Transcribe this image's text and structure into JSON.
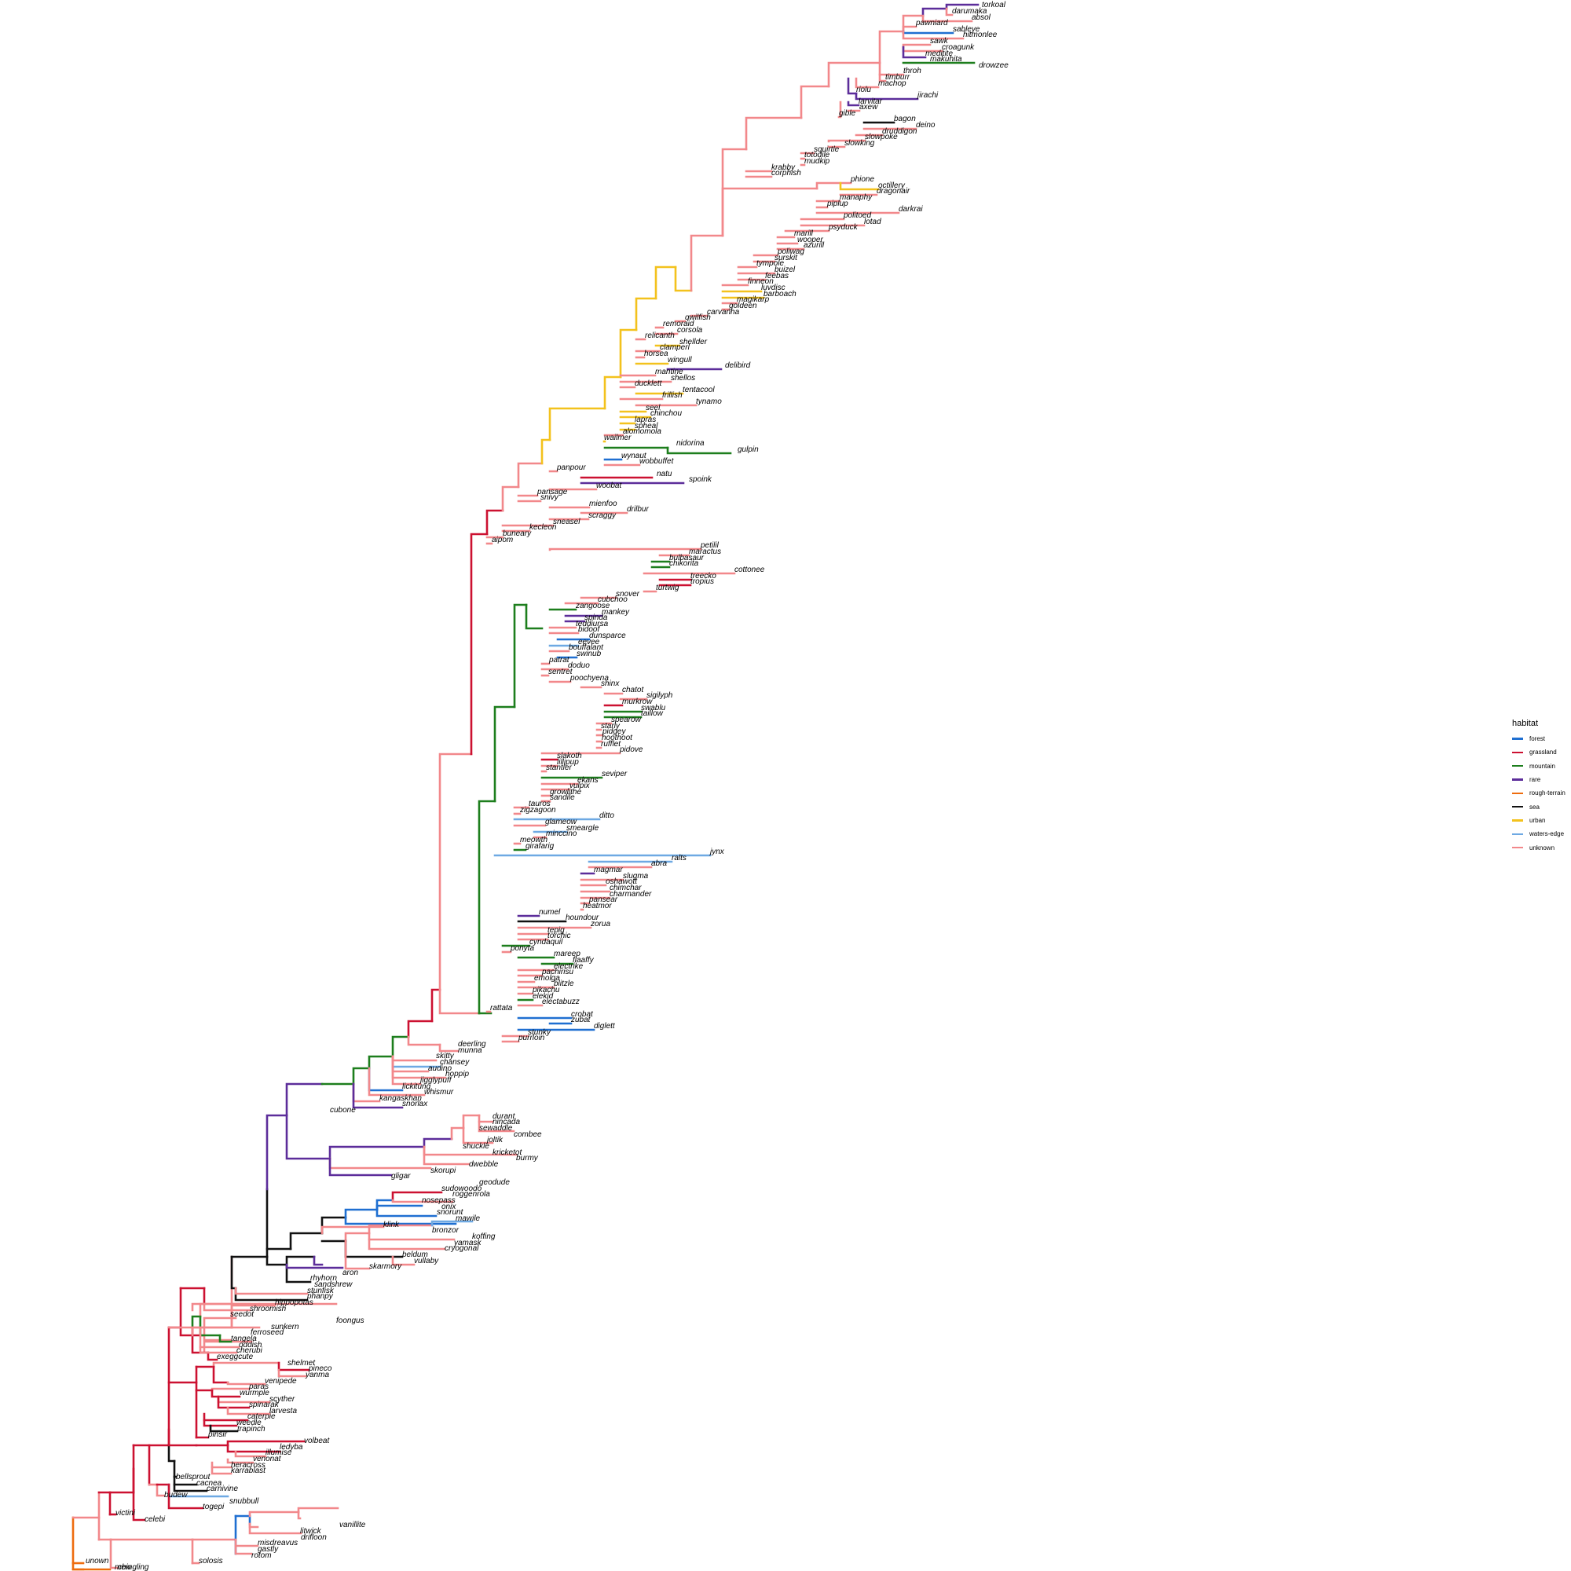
{
  "legend": {
    "title": "habitat",
    "items": [
      {
        "label": "forest",
        "color": "#1f6fd1"
      },
      {
        "label": "grassland",
        "color": "#cc1131"
      },
      {
        "label": "mountain",
        "color": "#1d7e1d"
      },
      {
        "label": "rare",
        "color": "#5c2d9a"
      },
      {
        "label": "rough-terrain",
        "color": "#ee6c0e"
      },
      {
        "label": "sea",
        "color": "#111111"
      },
      {
        "label": "urban",
        "color": "#f3c21d"
      },
      {
        "label": "waters-edge",
        "color": "#6ea9e3"
      },
      {
        "label": "unknown",
        "color": "#f2888b"
      }
    ]
  },
  "tips": [
    "torkoal",
    "darumaka",
    "absol",
    "pawniard",
    "sableye",
    "hitmonlee",
    "sawk",
    "croagunk",
    "meditite",
    "makuhita",
    "drowzee",
    "throh",
    "timburr",
    "machop",
    "riolu",
    "jirachi",
    "larvitar",
    "axew",
    "gible",
    "bagon",
    "deino",
    "druddigon",
    "slowpoke",
    "slowking",
    "squirtle",
    "totodile",
    "mudkip",
    "krabby",
    "corphish",
    "phione",
    "octillery",
    "dragonair",
    "manaphy",
    "piplup",
    "darkrai",
    "politoed",
    "lotad",
    "psyduck",
    "marill",
    "wooper",
    "azurill",
    "poliwag",
    "surskit",
    "tympole",
    "buizel",
    "feebas",
    "finneon",
    "luvdisc",
    "barboach",
    "magikarp",
    "goldeen",
    "carvanha",
    "qwilfish",
    "remoraid",
    "corsola",
    "relicanth",
    "shellder",
    "clamperl",
    "horsea",
    "wingull",
    "delibird",
    "mantine",
    "shellos",
    "ducklett",
    "tentacool",
    "frillish",
    "tynamo",
    "seel",
    "chinchou",
    "lapras",
    "spheal",
    "alomomola",
    "wailmer",
    "nidorina",
    "gulpin",
    "wynaut",
    "wobbuffet",
    "panpour",
    "natu",
    "spoink",
    "woobat",
    "pansage",
    "snivy",
    "mienfoo",
    "drilbur",
    "scraggy",
    "sneasel",
    "kecleon",
    "buneary",
    "aipom",
    "petilil",
    "maractus",
    "bulbasaur",
    "chikorita",
    "cottonee",
    "treecko",
    "tropius",
    "turtwig",
    "snover",
    "cubchoo",
    "zangoose",
    "mankey",
    "spinda",
    "teddiursa",
    "bidoof",
    "dunsparce",
    "eevee",
    "bouffalant",
    "swinub",
    "patrat",
    "doduo",
    "sentret",
    "poochyena",
    "shinx",
    "chatot",
    "sigilyph",
    "murkrow",
    "swablu",
    "taillow",
    "spearow",
    "starly",
    "pidgey",
    "hoothoot",
    "rufflet",
    "pidove",
    "slakoth",
    "lillipup",
    "stantler",
    "seviper",
    "ekans",
    "vulpix",
    "growlithe",
    "sandile",
    "tauros",
    "zigzagoon",
    "ditto",
    "glameow",
    "smeargle",
    "minccino",
    "meowth",
    "girafarig",
    "jynx",
    "ralts",
    "abra",
    "magmar",
    "slugma",
    "oshawott",
    "chimchar",
    "charmander",
    "pansear",
    "heatmor",
    "numel",
    "houndour",
    "zorua",
    "tepig",
    "torchic",
    "cyndaquil",
    "ponyta",
    "mareep",
    "flaaffy",
    "electrike",
    "pachirisu",
    "emolga",
    "blitzle",
    "pikachu",
    "elekid",
    "electabuzz",
    "rattata",
    "crobat",
    "zubat",
    "diglett",
    "stunky",
    "purrloin",
    "deerling",
    "munna",
    "skitty",
    "chansey",
    "audino",
    "hoppip",
    "jigglypuff",
    "lickitung",
    "whismur",
    "kangaskhan",
    "snorlax",
    "cubone",
    "durant",
    "nincada",
    "sewaddle",
    "combee",
    "joltik",
    "shuckle",
    "kricketot",
    "burmy",
    "dwebble",
    "skorupi",
    "gligar",
    "geodude",
    "sudowoodo",
    "roggenrola",
    "nosepass",
    "onix",
    "snorunt",
    "mawile",
    "klink",
    "bronzor",
    "koffing",
    "yamask",
    "cryogonal",
    "beldum",
    "vullaby",
    "skarmory",
    "aron",
    "rhyhorn",
    "sandshrew",
    "stunfisk",
    "phanpy",
    "hippopotas",
    "shroomish",
    "seedot",
    "foongus",
    "sunkern",
    "ferroseed",
    "tangela",
    "oddish",
    "cherubi",
    "exeggcute",
    "shelmet",
    "pineco",
    "yanma",
    "venipede",
    "paras",
    "wurmple",
    "scyther",
    "spinarak",
    "larvesta",
    "caterpie",
    "weedle",
    "trapinch",
    "pinsir",
    "volbeat",
    "ledyba",
    "illumise",
    "venonat",
    "heracross",
    "karrablast",
    "bellsprout",
    "cacnea",
    "carnivine",
    "budew",
    "snubbull",
    "togepi",
    "victini",
    "celebi",
    "vanillite",
    "litwick",
    "drifloon",
    "misdreavus",
    "gastly",
    "rotom",
    "solosis",
    "chingling",
    "unown",
    "mew"
  ]
}
